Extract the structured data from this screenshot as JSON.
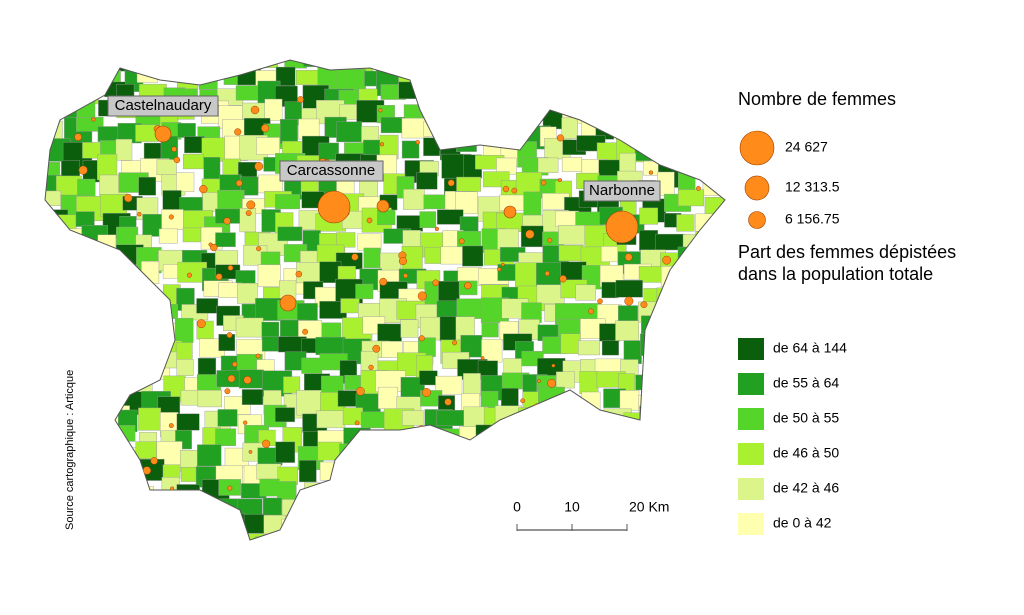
{
  "map": {
    "cities": [
      "Castelnaudary",
      "Carcassonne",
      "Narbonne"
    ],
    "circles_legend": {
      "title": "Nombre de femmes",
      "color": "#ff8c1a",
      "items": [
        {
          "value": 24627,
          "label": "24 627"
        },
        {
          "value": 12313.5,
          "label": "12 313.5"
        },
        {
          "value": 6156.75,
          "label": "6 156.75"
        }
      ]
    },
    "classes_legend": {
      "title": [
        "Part des femmes dépistées",
        "dans la population totale"
      ],
      "items": [
        {
          "label": "de 64 à 144",
          "color": "#0b5e0b"
        },
        {
          "label": "de 55 à 64",
          "color": "#22a022"
        },
        {
          "label": "de 50 à 55",
          "color": "#55d42a"
        },
        {
          "label": "de 46 à 50",
          "color": "#a8f030"
        },
        {
          "label": "de 42 à 46",
          "color": "#dcf58a"
        },
        {
          "label": "de 0 à 42",
          "color": "#ffffb0"
        }
      ]
    },
    "scale": {
      "ticks": [
        0,
        10,
        {
          "value": 20,
          "label": "20 Km"
        }
      ]
    },
    "source": "Source cartographique : Articque"
  }
}
